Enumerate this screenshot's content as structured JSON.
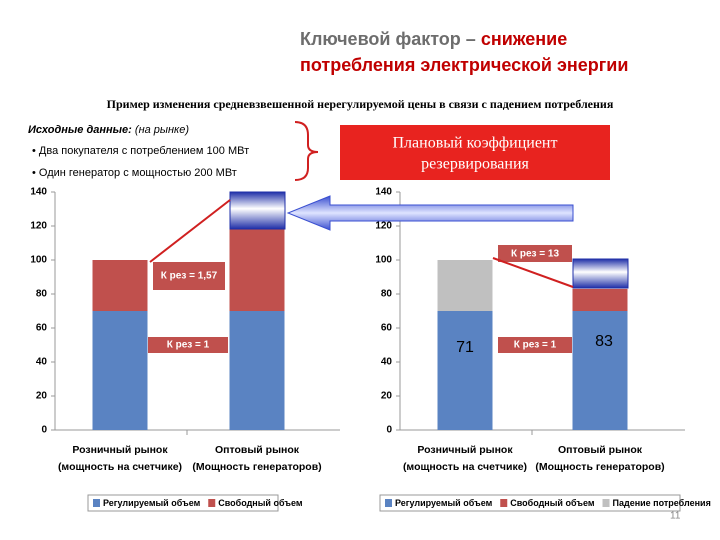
{
  "slide": {
    "title_part1": "Ключевой фактор – ",
    "title_part2": "снижение",
    "title_line2": "потребления электрической энергии",
    "subtitle": "Пример изменения средневзвешенной нерегулируемой цены в связи с падением потребления",
    "source_bold": "Исходные данные:",
    "source_rest": " (на рынке)",
    "bullets": [
      "• Два покупателя с потреблением 100 МВт",
      "• Один генератор с мощностью 200 МВт"
    ],
    "callout": [
      "Плановый коэффициент",
      "резервирования"
    ],
    "page_number": "11"
  },
  "chart_data": [
    {
      "type": "stacked_bar",
      "categories": [
        "Розничный рынок",
        "Оптовый рынок"
      ],
      "category_subtitles": [
        "(мощность на счетчике)",
        "(Мощность генераторов)"
      ],
      "series": [
        {
          "name": "Регулируемый объем",
          "color": "#5a83c2",
          "values": [
            70,
            70
          ]
        },
        {
          "name": "Свободный объем",
          "color": "#c0504d",
          "values": [
            30,
            48
          ]
        }
      ],
      "ylim": [
        0,
        140
      ],
      "yticks": [
        0,
        20,
        40,
        60,
        80,
        100,
        120,
        140
      ],
      "annotations": [
        "К рез = 1,57",
        "К рез = 1"
      ]
    },
    {
      "type": "stacked_bar",
      "categories": [
        "Розничный рынок",
        "Оптовый рынок"
      ],
      "category_subtitles": [
        "(мощность на счетчике)",
        "(Мощность генераторов)"
      ],
      "series": [
        {
          "name": "Регулируемый объем",
          "color": "#5a83c2",
          "values": [
            70,
            70
          ]
        },
        {
          "name": "Свободный объем",
          "color": "#c0504d",
          "values": [
            0,
            13
          ]
        },
        {
          "name": "Падение потребления",
          "color": "#c0c0c0",
          "values": [
            30,
            0
          ]
        }
      ],
      "ylim": [
        0,
        140
      ],
      "yticks": [
        0,
        20,
        40,
        60,
        80,
        100,
        120,
        140
      ],
      "annotations": [
        "К рез = 13",
        "К рез = 1",
        "71",
        "83"
      ]
    }
  ]
}
